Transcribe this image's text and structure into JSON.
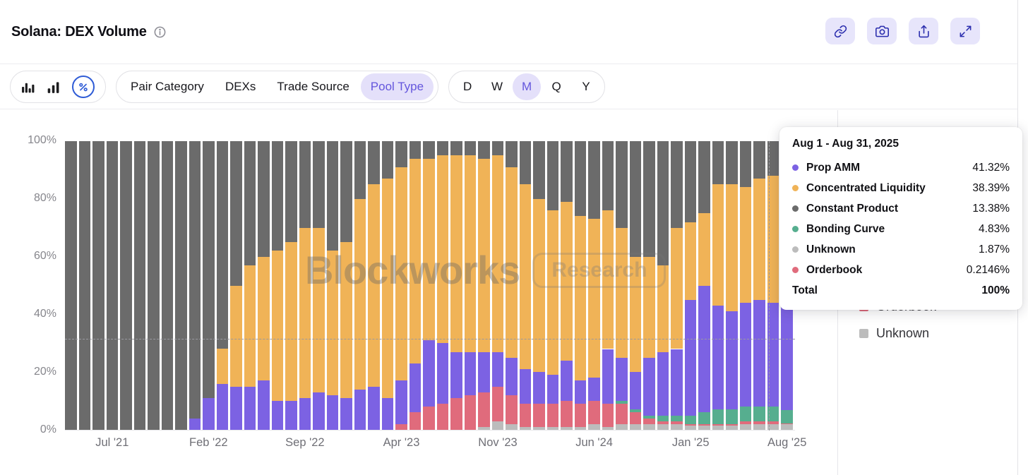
{
  "header": {
    "title": "Solana: DEX Volume",
    "actions": [
      {
        "name": "copy-link",
        "icon": "link-icon"
      },
      {
        "name": "screenshot",
        "icon": "camera-icon"
      },
      {
        "name": "export",
        "icon": "share-icon"
      },
      {
        "name": "fullscreen",
        "icon": "expand-icon"
      }
    ]
  },
  "toolbar": {
    "chart_types": [
      {
        "name": "bar-chart",
        "selected": false
      },
      {
        "name": "stacked-bar-chart",
        "selected": false
      },
      {
        "name": "percent-view",
        "selected": true
      }
    ],
    "categories": [
      {
        "label": "Pair Category",
        "selected": false
      },
      {
        "label": "DEXs",
        "selected": false
      },
      {
        "label": "Trade Source",
        "selected": false
      },
      {
        "label": "Pool Type",
        "selected": true
      }
    ],
    "timeframes": [
      {
        "label": "D",
        "selected": false
      },
      {
        "label": "W",
        "selected": false
      },
      {
        "label": "M",
        "selected": true
      },
      {
        "label": "Q",
        "selected": false
      },
      {
        "label": "Y",
        "selected": false
      }
    ]
  },
  "tooltip": {
    "title": "Aug 1 - Aug 31, 2025",
    "rows": [
      {
        "label": "Prop AMM",
        "value": "41.32%",
        "color": "#7c62e3"
      },
      {
        "label": "Concentrated Liquidity",
        "value": "38.39%",
        "color": "#f0b357"
      },
      {
        "label": "Constant Product",
        "value": "13.38%",
        "color": "#6b6b6b"
      },
      {
        "label": "Bonding Curve",
        "value": "4.83%",
        "color": "#56ae8f"
      },
      {
        "label": "Unknown",
        "value": "1.87%",
        "color": "#bcbcbc"
      },
      {
        "label": "Orderbook",
        "value": "0.2146%",
        "color": "#e06b7c"
      }
    ],
    "total": {
      "label": "Total",
      "value": "100%"
    }
  },
  "legend": {
    "items": [
      {
        "label": "Prop AMM",
        "color": "#7c62e3"
      },
      {
        "label": "Concentrated Liquidity",
        "color": "#f0b357"
      },
      {
        "label": "Constant Product",
        "color": "#6b6b6b"
      },
      {
        "label": "Bonding Curve",
        "color": "#56ae8f"
      },
      {
        "label": "Orderbook",
        "color": "#e06b7c"
      },
      {
        "label": "Unknown",
        "color": "#bcbcbc"
      }
    ]
  },
  "watermark": {
    "brand": "Blockworks",
    "sub": "Research"
  },
  "chart_data": {
    "type": "bar",
    "stacked": true,
    "unit": "%",
    "title": "Solana: DEX Volume share by Pool Type (monthly)",
    "ylim": [
      0,
      100
    ],
    "grid": false,
    "y_ticks": [
      "100%",
      "80%",
      "60%",
      "40%",
      "20%",
      "0%"
    ],
    "x_tick_indices": [
      3,
      10,
      17,
      24,
      31,
      38,
      45,
      52
    ],
    "x_tick_labels": [
      "Jul '21",
      "Feb '22",
      "Sep '22",
      "Apr '23",
      "Nov '23",
      "Jun '24",
      "Jan '25",
      "Aug '25"
    ],
    "categories": [
      "Apr '21",
      "May '21",
      "Jun '21",
      "Jul '21",
      "Aug '21",
      "Sep '21",
      "Oct '21",
      "Nov '21",
      "Dec '21",
      "Jan '22",
      "Feb '22",
      "Mar '22",
      "Apr '22",
      "May '22",
      "Jun '22",
      "Jul '22",
      "Aug '22",
      "Sep '22",
      "Oct '22",
      "Nov '22",
      "Dec '22",
      "Jan '23",
      "Feb '23",
      "Mar '23",
      "Apr '23",
      "May '23",
      "Jun '23",
      "Jul '23",
      "Aug '23",
      "Sep '23",
      "Oct '23",
      "Nov '23",
      "Dec '23",
      "Jan '24",
      "Feb '24",
      "Mar '24",
      "Apr '24",
      "May '24",
      "Jun '24",
      "Jul '24",
      "Aug '24",
      "Sep '24",
      "Oct '24",
      "Nov '24",
      "Dec '24",
      "Jan '25",
      "Feb '25",
      "Mar '25",
      "Apr '25",
      "May '25",
      "Jun '25",
      "Jul '25",
      "Aug '25"
    ],
    "stack_order": [
      "Unknown",
      "Orderbook",
      "Bonding Curve",
      "Prop AMM",
      "Concentrated Liquidity",
      "Constant Product"
    ],
    "colors": {
      "Prop AMM": "#7c62e3",
      "Concentrated Liquidity": "#f0b357",
      "Constant Product": "#6b6b6b",
      "Bonding Curve": "#56ae8f",
      "Unknown": "#bcbcbc",
      "Orderbook": "#e06b7c"
    },
    "series": [
      {
        "name": "Prop AMM",
        "values": [
          0,
          0,
          0,
          0,
          0,
          0,
          0,
          0,
          0,
          4,
          11,
          16,
          15,
          15,
          17,
          10,
          10,
          11,
          13,
          12,
          11,
          14,
          15,
          11,
          15,
          17,
          23,
          21,
          16,
          15,
          14,
          12,
          13,
          12,
          11,
          10,
          14,
          8,
          8,
          19,
          15,
          13,
          20,
          22,
          23,
          40,
          44,
          36,
          34,
          36,
          37,
          36,
          41.32
        ]
      },
      {
        "name": "Concentrated Liquidity",
        "values": [
          0,
          0,
          0,
          0,
          0,
          0,
          0,
          0,
          0,
          0,
          0,
          12,
          35,
          42,
          43,
          52,
          55,
          59,
          57,
          50,
          54,
          66,
          70,
          76,
          74,
          71,
          63,
          65,
          68,
          68,
          67,
          68,
          66,
          64,
          60,
          57,
          55,
          57,
          55,
          48,
          45,
          40,
          35,
          30,
          42,
          27,
          25,
          42,
          44,
          40,
          42,
          44,
          38.39
        ]
      },
      {
        "name": "Constant Product",
        "values": [
          100,
          100,
          100,
          100,
          100,
          100,
          100,
          100,
          100,
          96,
          89,
          72,
          50,
          43,
          40,
          38,
          35,
          30,
          30,
          38,
          35,
          20,
          15,
          13,
          9,
          6,
          6,
          5,
          5,
          5,
          6,
          5,
          9,
          15,
          20,
          24,
          21,
          26,
          27,
          24,
          30,
          40,
          40,
          43,
          30,
          28,
          25,
          15,
          15,
          16,
          13,
          12,
          13.38
        ]
      },
      {
        "name": "Bonding Curve",
        "values": [
          0,
          0,
          0,
          0,
          0,
          0,
          0,
          0,
          0,
          0,
          0,
          0,
          0,
          0,
          0,
          0,
          0,
          0,
          0,
          0,
          0,
          0,
          0,
          0,
          0,
          0,
          0,
          0,
          0,
          0,
          0,
          0,
          0,
          0,
          0,
          0,
          0,
          0,
          0,
          0,
          1,
          1,
          1,
          2,
          2,
          3,
          4,
          5,
          5,
          5,
          5,
          5,
          4.83
        ]
      },
      {
        "name": "Unknown",
        "values": [
          0,
          0,
          0,
          0,
          0,
          0,
          0,
          0,
          0,
          0,
          0,
          0,
          0,
          0,
          0,
          0,
          0,
          0,
          0,
          0,
          0,
          0,
          0,
          0,
          0,
          0,
          0,
          0,
          0,
          0,
          1,
          3,
          2,
          1,
          1,
          1,
          1,
          1,
          2,
          1,
          2,
          2,
          2,
          2,
          2,
          1.5,
          1.5,
          1.5,
          1.5,
          2,
          2,
          2,
          1.87
        ]
      },
      {
        "name": "Orderbook",
        "values": [
          0,
          0,
          0,
          0,
          0,
          0,
          0,
          0,
          0,
          0,
          0,
          0,
          0,
          0,
          0,
          0,
          0,
          0,
          0,
          0,
          0,
          0,
          0,
          0,
          2,
          6,
          8,
          9,
          11,
          12,
          12,
          12,
          10,
          8,
          8,
          8,
          9,
          8,
          8,
          8,
          7,
          4,
          2,
          1,
          1,
          0.5,
          0.5,
          0.5,
          0.5,
          1,
          1,
          1,
          0.2146
        ]
      }
    ],
    "crosshair": {
      "hovered_category": "Aug '25",
      "y_percent": 32
    },
    "legend_position": "right"
  }
}
